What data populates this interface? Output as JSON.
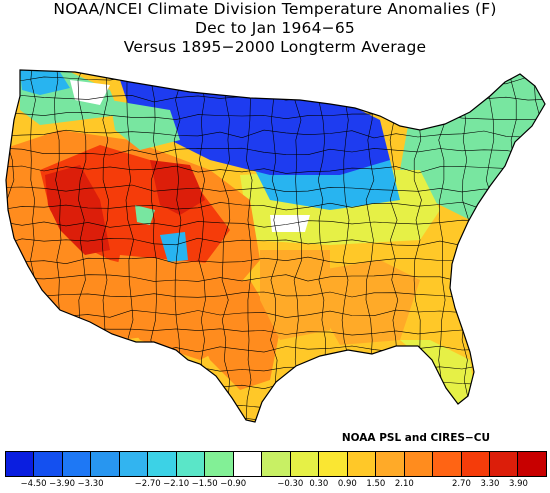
{
  "title": {
    "line1": "NOAA/NCEI Climate Division Temperature Anomalies (F)",
    "line2": "Dec to Jan 1964−65",
    "line3": "Versus 1895−2000 Longterm Average"
  },
  "credit": "NOAA PSL and CIRES−CU",
  "legend": {
    "colors": [
      "#0a1ee0",
      "#1450f0",
      "#1e78f5",
      "#2896f0",
      "#32b4f0",
      "#3cd2e6",
      "#5ae6c8",
      "#82f096",
      "#ffffff",
      "#c8f064",
      "#e6f046",
      "#fae632",
      "#ffc828",
      "#ffaa28",
      "#ff8c1e",
      "#ff6414",
      "#f53c0a",
      "#dc1e0a",
      "#c80000"
    ],
    "tick_labels": [
      "−4.50",
      "−3.90",
      "−3.30",
      "−2.70",
      "−2.10",
      "−1.50",
      "−0.90",
      "−0.30",
      "0.30",
      "0.90",
      "1.50",
      "2.10",
      "2.70",
      "3.30",
      "3.90"
    ]
  },
  "map_colors": {
    "ocean": "#ffffff",
    "cold": "#1e3cf0",
    "cool": "#28b4f0",
    "mild_cool": "#78e6a0",
    "neutral": "#ffffff",
    "slight_warm": "#e6f046",
    "warm": "#ffc828",
    "warmer": "#ffaa28",
    "hot": "#ff8c1e",
    "very_hot": "#f53c0a",
    "extreme": "#dc1e0a",
    "border": "#000000"
  }
}
